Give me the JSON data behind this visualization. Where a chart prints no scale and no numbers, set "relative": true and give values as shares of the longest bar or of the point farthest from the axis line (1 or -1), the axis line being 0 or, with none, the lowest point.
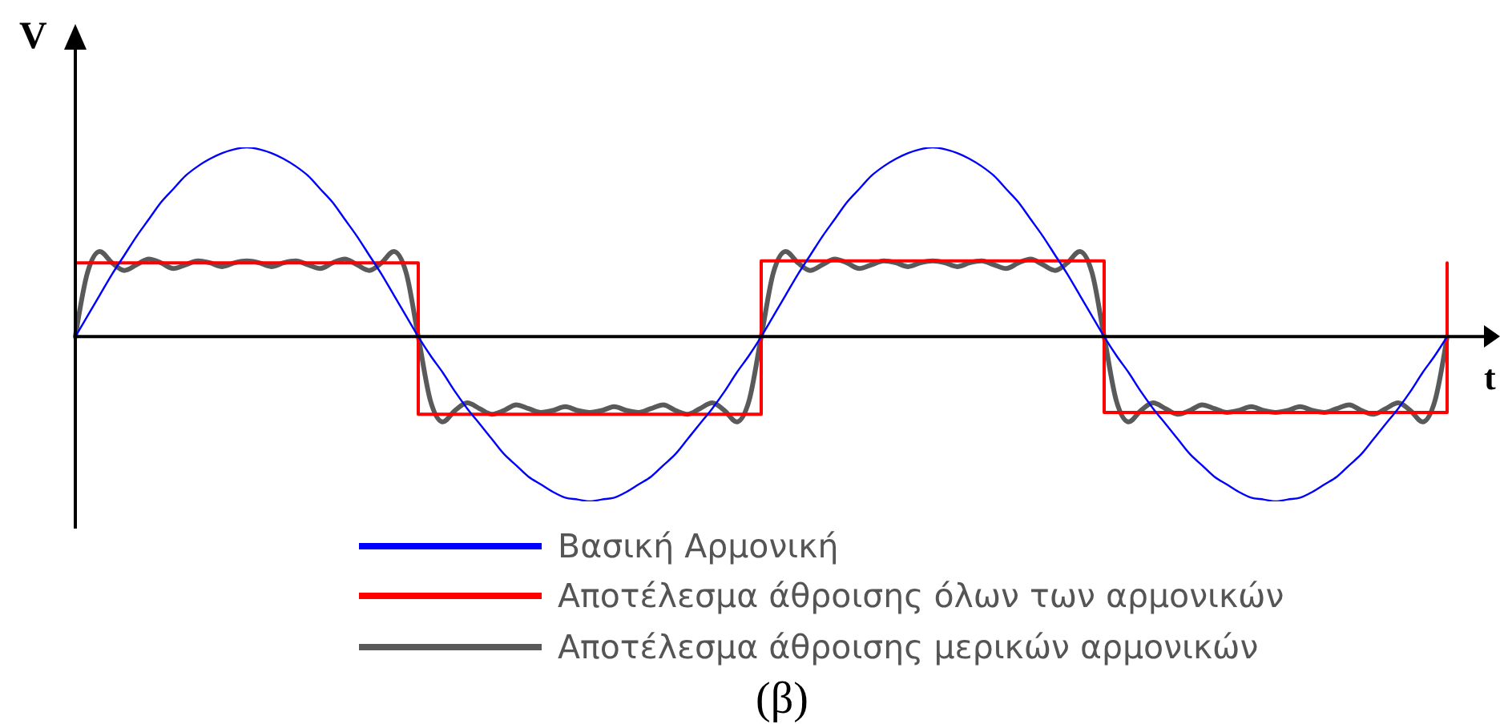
{
  "chart_data": {
    "type": "line",
    "relative": true,
    "xlabel": "t",
    "ylabel": "V",
    "legend": "bottom",
    "annotations": [
      "(β)"
    ],
    "categories": [
      null,
      null,
      null,
      null,
      null,
      null,
      null,
      null,
      null,
      null,
      null,
      null,
      null,
      null,
      null,
      null,
      null,
      null,
      null,
      null,
      null,
      null,
      null,
      null,
      null,
      null,
      null,
      null,
      null,
      null,
      null,
      null,
      null,
      null,
      null,
      null,
      null,
      null,
      null,
      null,
      null,
      null,
      null,
      null,
      null,
      null,
      null,
      null,
      null,
      null,
      null,
      null,
      null,
      null,
      null,
      null,
      null,
      null,
      null,
      null,
      null,
      null,
      null,
      null,
      null,
      null,
      null,
      null,
      null,
      null,
      null,
      null,
      null,
      null,
      null,
      null,
      null,
      null,
      null,
      null,
      null,
      null,
      null,
      null,
      null,
      null,
      null,
      null,
      null,
      null,
      null,
      null,
      null,
      null,
      null,
      null,
      null,
      null,
      null,
      null,
      null,
      null,
      null,
      null,
      null,
      null,
      null,
      null,
      null,
      null,
      null,
      null,
      null
    ],
    "series": [
      {
        "name": "Βασική Αρμονική",
        "color": "#0000ff",
        "values": [
          0,
          0.11,
          0.22,
          0.33,
          0.43,
          0.53,
          0.62,
          0.71,
          0.78,
          0.85,
          0.9,
          0.94,
          0.97,
          0.99,
          1,
          0.99,
          0.97,
          0.94,
          0.9,
          0.85,
          0.78,
          0.71,
          0.62,
          0.53,
          0.43,
          0.33,
          0.22,
          0.11,
          0,
          -0.1,
          -0.19,
          -0.29,
          -0.38,
          -0.46,
          -0.54,
          -0.62,
          -0.68,
          -0.74,
          -0.78,
          -0.82,
          -0.85,
          -0.86,
          -0.87,
          -0.86,
          -0.85,
          -0.82,
          -0.78,
          -0.74,
          -0.68,
          -0.62,
          -0.54,
          -0.46,
          -0.38,
          -0.29,
          -0.19,
          -0.1,
          0,
          0.11,
          0.22,
          0.33,
          0.43,
          0.53,
          0.62,
          0.71,
          0.78,
          0.85,
          0.9,
          0.94,
          0.97,
          0.99,
          1,
          0.99,
          0.97,
          0.94,
          0.9,
          0.85,
          0.78,
          0.71,
          0.62,
          0.53,
          0.43,
          0.33,
          0.22,
          0.11,
          0,
          -0.1,
          -0.19,
          -0.29,
          -0.38,
          -0.46,
          -0.54,
          -0.62,
          -0.68,
          -0.74,
          -0.78,
          -0.82,
          -0.85,
          -0.86,
          -0.87,
          -0.86,
          -0.85,
          -0.82,
          -0.78,
          -0.74,
          -0.68,
          -0.62,
          -0.54,
          -0.46,
          -0.38,
          -0.29,
          -0.19,
          -0.1,
          0
        ]
      },
      {
        "name": "Αποτέλεσμα άθροισης όλων των αρμονικών",
        "type": "step",
        "color": "#ff0000",
        "values": [
          0.39,
          0.39,
          0.39,
          0.39,
          0.39,
          0.39,
          0.39,
          0.39,
          0.39,
          0.39,
          0.39,
          0.39,
          0.39,
          0.39,
          0.39,
          0.39,
          0.39,
          0.39,
          0.39,
          0.39,
          0.39,
          0.39,
          0.39,
          0.39,
          0.39,
          0.39,
          0.39,
          0.39,
          -0.41,
          -0.41,
          -0.41,
          -0.41,
          -0.41,
          -0.41,
          -0.41,
          -0.41,
          -0.41,
          -0.41,
          -0.41,
          -0.41,
          -0.41,
          -0.41,
          -0.41,
          -0.41,
          -0.41,
          -0.41,
          -0.41,
          -0.41,
          -0.41,
          -0.41,
          -0.41,
          -0.41,
          -0.41,
          -0.41,
          -0.41,
          -0.41,
          0.4,
          0.4,
          0.4,
          0.4,
          0.4,
          0.4,
          0.4,
          0.4,
          0.4,
          0.4,
          0.4,
          0.4,
          0.4,
          0.4,
          0.4,
          0.4,
          0.4,
          0.4,
          0.4,
          0.4,
          0.4,
          0.4,
          0.4,
          0.4,
          0.4,
          0.4,
          0.4,
          0.4,
          -0.4,
          -0.4,
          -0.4,
          -0.4,
          -0.4,
          -0.4,
          -0.4,
          -0.4,
          -0.4,
          -0.4,
          -0.4,
          -0.4,
          -0.4,
          -0.4,
          -0.4,
          -0.4,
          -0.4,
          -0.4,
          -0.4,
          -0.4,
          -0.4,
          -0.4,
          -0.4,
          -0.4,
          -0.4,
          -0.4,
          -0.4,
          -0.4,
          0.39
        ]
      },
      {
        "name": "Αποτέλεσμα άθροισης μερικών αρμονικών",
        "color": "#5a5a5a",
        "values": [
          0,
          0.34,
          0.45,
          0.39,
          0.35,
          0.38,
          0.41,
          0.39,
          0.36,
          0.38,
          0.4,
          0.39,
          0.37,
          0.39,
          0.4,
          0.39,
          0.37,
          0.39,
          0.4,
          0.38,
          0.36,
          0.39,
          0.41,
          0.38,
          0.35,
          0.39,
          0.45,
          0.34,
          0,
          -0.34,
          -0.45,
          -0.39,
          -0.35,
          -0.38,
          -0.41,
          -0.39,
          -0.36,
          -0.38,
          -0.4,
          -0.39,
          -0.37,
          -0.39,
          -0.4,
          -0.39,
          -0.37,
          -0.39,
          -0.4,
          -0.38,
          -0.36,
          -0.39,
          -0.41,
          -0.38,
          -0.35,
          -0.39,
          -0.45,
          -0.34,
          0,
          0.34,
          0.45,
          0.39,
          0.35,
          0.38,
          0.41,
          0.39,
          0.36,
          0.38,
          0.4,
          0.39,
          0.37,
          0.39,
          0.4,
          0.39,
          0.37,
          0.39,
          0.4,
          0.38,
          0.36,
          0.39,
          0.41,
          0.38,
          0.35,
          0.39,
          0.45,
          0.34,
          0,
          -0.34,
          -0.45,
          -0.39,
          -0.35,
          -0.38,
          -0.41,
          -0.39,
          -0.36,
          -0.38,
          -0.4,
          -0.39,
          -0.37,
          -0.39,
          -0.4,
          -0.39,
          -0.37,
          -0.39,
          -0.4,
          -0.38,
          -0.36,
          -0.39,
          -0.41,
          -0.38,
          -0.35,
          -0.39,
          -0.45,
          -0.34,
          0
        ]
      }
    ]
  }
}
